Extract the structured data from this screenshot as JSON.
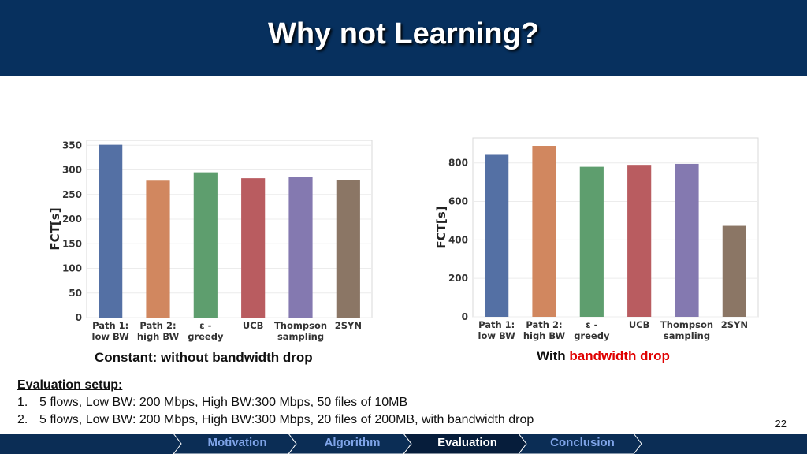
{
  "slide": {
    "title": "Why not Learning?",
    "page_number": "22"
  },
  "chart_data": [
    {
      "type": "bar",
      "ylabel": "FCT[s]",
      "categories": [
        [
          "Path 1:",
          "low BW"
        ],
        [
          "Path 2:",
          "high BW"
        ],
        [
          "ε -",
          "greedy"
        ],
        [
          "UCB"
        ],
        [
          "Thompson",
          "sampling"
        ],
        [
          "2SYN"
        ]
      ],
      "values": [
        351,
        278,
        295,
        283,
        285,
        280
      ],
      "colors": [
        "#5470a4",
        "#d1875f",
        "#5e9e6e",
        "#b95c60",
        "#8479b0",
        "#8b7665"
      ],
      "ylim": [
        0,
        360
      ],
      "yticks": [
        0,
        50,
        100,
        150,
        200,
        250,
        300,
        350
      ],
      "caption": "Constant: without  bandwidth drop"
    },
    {
      "type": "bar",
      "ylabel": "FCT[s]",
      "categories": [
        [
          "Path 1:",
          "low BW"
        ],
        [
          "Path 2:",
          "high BW"
        ],
        [
          "ε -",
          "greedy"
        ],
        [
          "UCB"
        ],
        [
          "Thompson",
          "sampling"
        ],
        [
          "2SYN"
        ]
      ],
      "values": [
        842,
        889,
        780,
        790,
        795,
        473
      ],
      "colors": [
        "#5470a4",
        "#d1875f",
        "#5e9e6e",
        "#b95c60",
        "#8479b0",
        "#8b7665"
      ],
      "ylim": [
        0,
        930
      ],
      "yticks": [
        0,
        200,
        400,
        600,
        800
      ],
      "caption_prefix": "With",
      "caption_highlight": "bandwidth drop"
    }
  ],
  "setup": {
    "title": "Evaluation setup:",
    "items": [
      {
        "num": "1.",
        "text": "5 flows, Low BW: 200 Mbps, High BW:300 Mbps, 50 files of 10MB"
      },
      {
        "num": "2.",
        "text": "5 flows, Low BW: 200 Mbps, High BW:300 Mbps, 20 files of 200MB, with bandwidth drop"
      }
    ]
  },
  "nav": {
    "items": [
      "Motivation",
      "Algorithm",
      "Evaluation",
      "Conclusion"
    ],
    "active": "Evaluation",
    "active_color": "#061d3b",
    "bar_color": "#0b2d55"
  }
}
